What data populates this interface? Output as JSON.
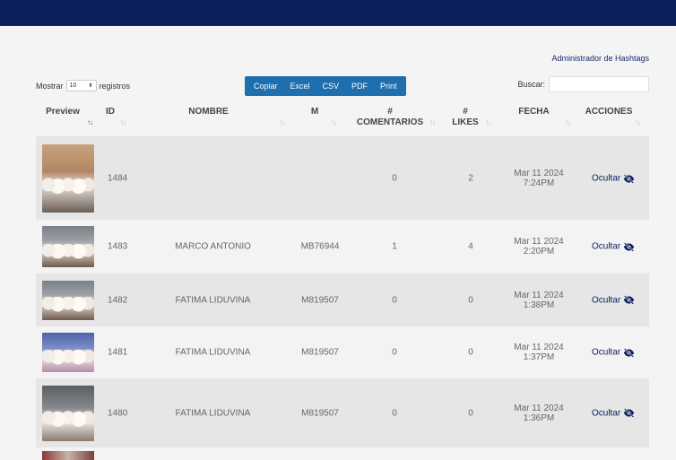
{
  "header": {
    "admin_link": "Administrador de Hashtags"
  },
  "controls": {
    "show_prefix": "Mostrar",
    "page_length": "10",
    "show_suffix": "registros",
    "buttons": [
      "Copiar",
      "Excel",
      "CSV",
      "PDF",
      "Print"
    ],
    "search_label": "Buscar:",
    "search_value": ""
  },
  "table": {
    "columns": [
      {
        "label": "Preview",
        "sub": "",
        "sort": "↑↓"
      },
      {
        "label": "ID",
        "sub": "",
        "sort": "↑↓"
      },
      {
        "label": "NOMBRE",
        "sub": "",
        "sort": "↑↓"
      },
      {
        "label": "M",
        "sub": "",
        "sort": "↑↓"
      },
      {
        "label": "#",
        "sub": "COMENTARIOS",
        "sort": "↑↓"
      },
      {
        "label": "#",
        "sub": "LIKES",
        "sort": "↑↓"
      },
      {
        "label": "FECHA",
        "sub": "",
        "sort": "↑↓"
      },
      {
        "label": "ACCIONES",
        "sub": "",
        "sort": "↑↓"
      }
    ],
    "rows": [
      {
        "id": "1484",
        "nombre": "",
        "m": "",
        "comentarios": "0",
        "likes": "2",
        "fecha_date": "Mar 11 2024",
        "fecha_time": "7:24PM",
        "action": "Ocultar"
      },
      {
        "id": "1483",
        "nombre": "MARCO ANTONIO",
        "m": "MB76944",
        "comentarios": "1",
        "likes": "4",
        "fecha_date": "Mar 11 2024",
        "fecha_time": "2:20PM",
        "action": "Ocultar"
      },
      {
        "id": "1482",
        "nombre": "FATIMA LIDUVINA",
        "m": "M819507",
        "comentarios": "0",
        "likes": "0",
        "fecha_date": "Mar 11 2024",
        "fecha_time": "1:38PM",
        "action": "Ocultar"
      },
      {
        "id": "1481",
        "nombre": "FATIMA LIDUVINA",
        "m": "M819507",
        "comentarios": "0",
        "likes": "0",
        "fecha_date": "Mar 11 2024",
        "fecha_time": "1:37PM",
        "action": "Ocultar"
      },
      {
        "id": "1480",
        "nombre": "FATIMA LIDUVINA",
        "m": "M819507",
        "comentarios": "0",
        "likes": "0",
        "fecha_date": "Mar 11 2024",
        "fecha_time": "1:36PM",
        "action": "Ocultar"
      }
    ]
  },
  "icons": {
    "action_icon": "eye-slash-icon"
  },
  "colors": {
    "topbar": "#0b1f5b",
    "button_group": "#1f6fae",
    "action_text": "#0b1f5b"
  }
}
